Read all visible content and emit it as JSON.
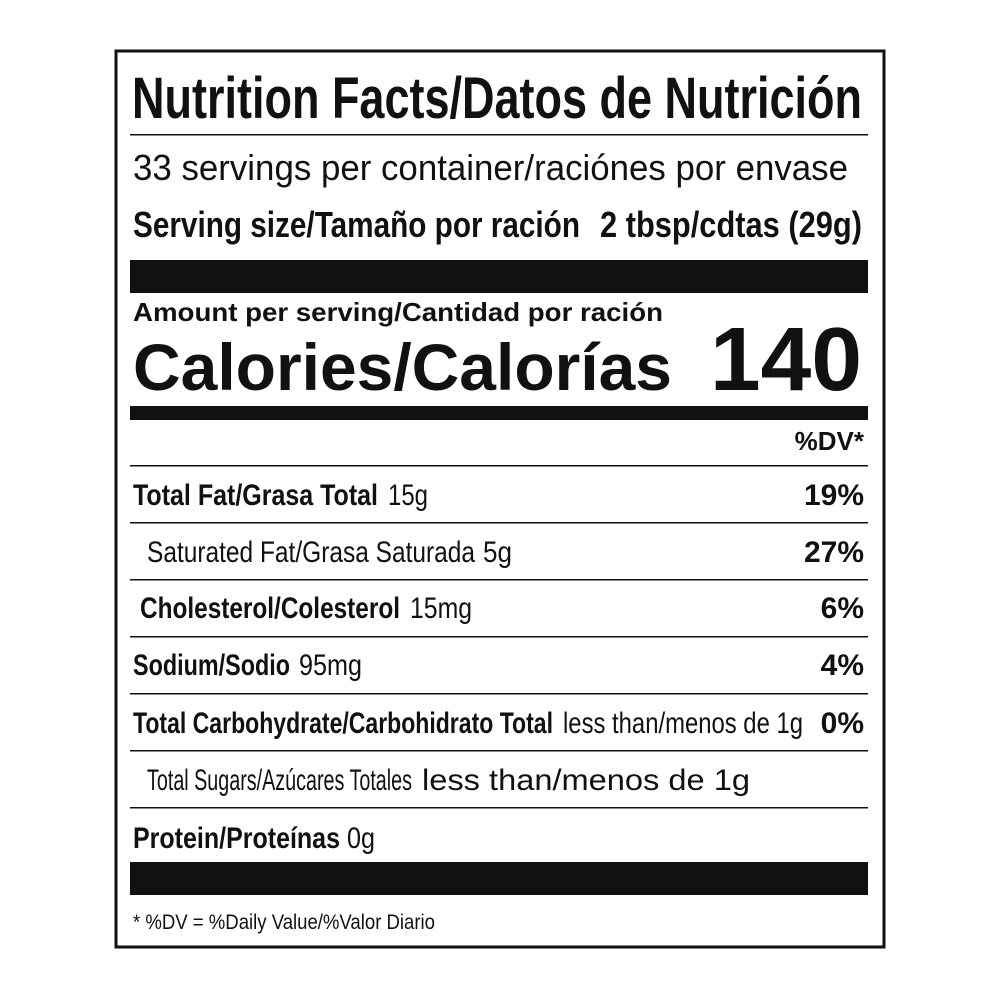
{
  "title": "Nutrition Facts/Datos de Nutrición",
  "servings": "33 servings per container/raciónes por envase",
  "serving_size": {
    "label": "Serving size/Tamaño por ración",
    "value": "2 tbsp/cdtas (29g)"
  },
  "amount_per_serving": "Amount per serving/Cantidad por ración",
  "calories": {
    "label": "Calories/Calorías",
    "value": "140"
  },
  "dv_header": "%DV*",
  "rows": [
    {
      "name": "Total Fat/Grasa Total",
      "amount": "15g",
      "dv": "19%"
    },
    {
      "name": "Saturated Fat/Grasa Saturada",
      "amount": "5g",
      "dv": "27%"
    },
    {
      "name": "Cholesterol/Colesterol",
      "amount": "15mg",
      "dv": "6%"
    },
    {
      "name": "Sodium/Sodio",
      "amount": "95mg",
      "dv": "4%"
    },
    {
      "name": "Total Carbohydrate/Carbohidrato Total",
      "amount": "less than/menos de 1g",
      "dv": "0%"
    },
    {
      "name": "Total Sugars/Azúcares Totales",
      "amount": "less than/menos de 1g"
    },
    {
      "name": "Protein/Proteínas",
      "amount": "0g"
    }
  ],
  "footnote": "* %DV = %Daily Value/%Valor Diario"
}
